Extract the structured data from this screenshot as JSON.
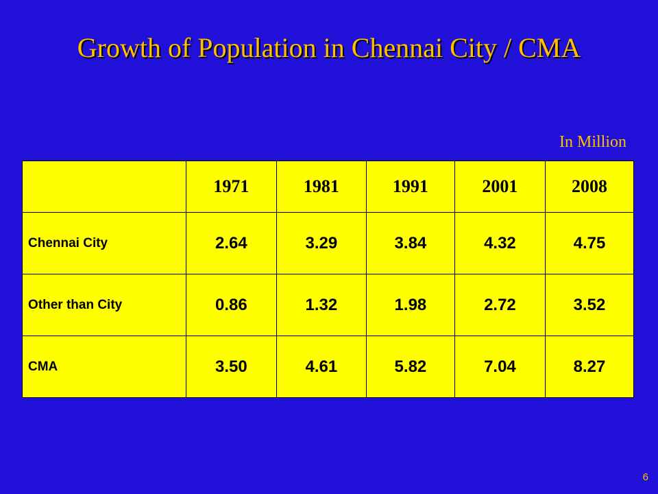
{
  "slide": {
    "title": "Growth of Population in Chennai City / CMA",
    "unit_note": "In Million",
    "page_number": "6"
  },
  "table": {
    "columns": [
      "",
      "1971",
      "1981",
      "1991",
      "2001",
      "2008"
    ],
    "rows": [
      {
        "label": "Chennai City",
        "values": [
          "2.64",
          "3.29",
          "3.84",
          "4.32",
          "4.75"
        ]
      },
      {
        "label": "Other than City",
        "values": [
          "0.86",
          "1.32",
          "1.98",
          "2.72",
          "3.52"
        ]
      },
      {
        "label": "CMA",
        "values": [
          "3.50",
          "4.61",
          "5.82",
          "7.04",
          "8.27"
        ]
      }
    ]
  },
  "colors": {
    "background": "#2010d8",
    "title": "#ffc000",
    "table_fill": "#ffff00",
    "table_text": "#000000"
  }
}
